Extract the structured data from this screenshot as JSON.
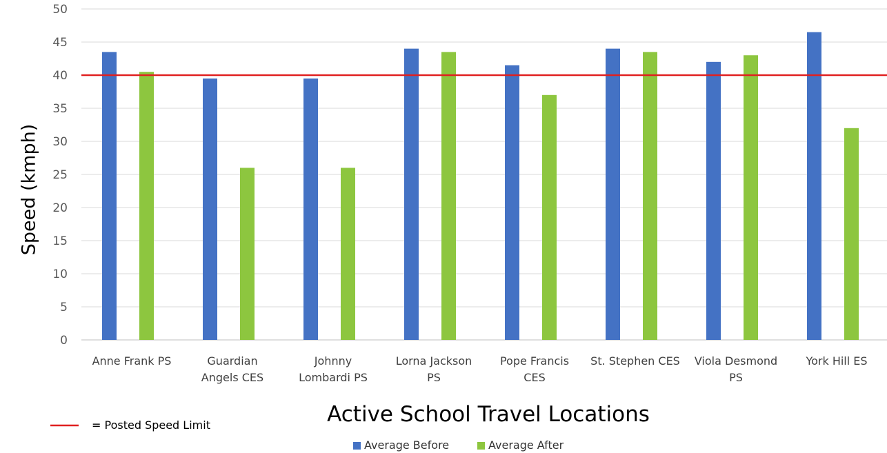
{
  "chart_data": {
    "type": "bar",
    "ylabel": "Speed (kmph)",
    "xlabel": "Active School Travel Locations",
    "ylim": [
      0,
      50
    ],
    "ytick_step": 5,
    "grid": true,
    "legend_position": "bottom",
    "categories": [
      [
        "Anne Frank PS"
      ],
      [
        "Guardian",
        "Angels CES"
      ],
      [
        "Johnny",
        "Lombardi PS"
      ],
      [
        "Lorna Jackson",
        "PS"
      ],
      [
        "Pope Francis",
        "CES"
      ],
      [
        "St. Stephen CES"
      ],
      [
        "Viola Desmond",
        "PS"
      ],
      [
        "York Hill ES"
      ]
    ],
    "series": [
      {
        "name": "Average Before",
        "color": "#4472C4",
        "values": [
          43.5,
          39.5,
          39.5,
          44,
          41.5,
          44,
          42,
          46.5
        ]
      },
      {
        "name": "Average After",
        "color": "#8DC63F",
        "values": [
          40.5,
          26,
          26,
          43.5,
          37,
          43.5,
          43,
          32
        ]
      }
    ],
    "reference_line": {
      "value": 40,
      "color": "#E02020",
      "label": "= Posted Speed Limit"
    }
  }
}
